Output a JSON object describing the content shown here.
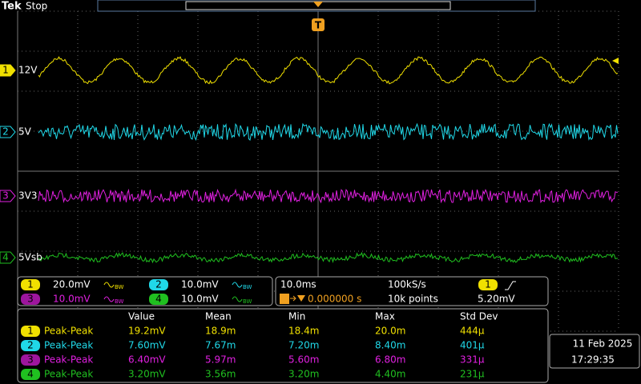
{
  "header": {
    "brand": "Tek",
    "status": "Stop",
    "trigger_marker": "T"
  },
  "channels": [
    {
      "number": "1",
      "label": "12V",
      "color": "#f0e000"
    },
    {
      "number": "2",
      "label": "5V",
      "color": "#20d8e8"
    },
    {
      "number": "3",
      "label": "3V3",
      "color": "#e020e0"
    },
    {
      "number": "4",
      "label": "5Vsb",
      "color": "#20c020"
    }
  ],
  "vertical_settings": [
    {
      "channel": "1",
      "scale": "20.0mV",
      "bandwidth": "BW"
    },
    {
      "channel": "2",
      "scale": "10.0mV",
      "bandwidth": "BW"
    },
    {
      "channel": "3",
      "scale": "10.0mV",
      "bandwidth": "BW"
    },
    {
      "channel": "4",
      "scale": "10.0mV",
      "bandwidth": "BW"
    }
  ],
  "horizontal": {
    "scale": "10.0ms",
    "sample_rate": "100kS/s",
    "trigger_position": "0.000000 s",
    "record_length": "10k points"
  },
  "trigger": {
    "channel": "1",
    "level": "5.20mV"
  },
  "measurements": {
    "columns": [
      "Value",
      "Mean",
      "Min",
      "Max",
      "Std Dev"
    ],
    "rows": [
      {
        "channel": "1",
        "type": "Peak-Peak",
        "cells": [
          "19.2mV",
          "18.9m",
          "18.4m",
          "20.0m",
          "444µ"
        ]
      },
      {
        "channel": "2",
        "type": "Peak-Peak",
        "cells": [
          "7.60mV",
          "7.67m",
          "7.20m",
          "8.40m",
          "401µ"
        ]
      },
      {
        "channel": "3",
        "type": "Peak-Peak",
        "cells": [
          "6.40mV",
          "5.97m",
          "5.60m",
          "6.80m",
          "331µ"
        ]
      },
      {
        "channel": "4",
        "type": "Peak-Peak",
        "cells": [
          "3.20mV",
          "3.56m",
          "3.20m",
          "4.40m",
          "231µ"
        ]
      }
    ]
  },
  "datetime": {
    "date": "11 Feb 2025",
    "time": "17:29:35"
  }
}
